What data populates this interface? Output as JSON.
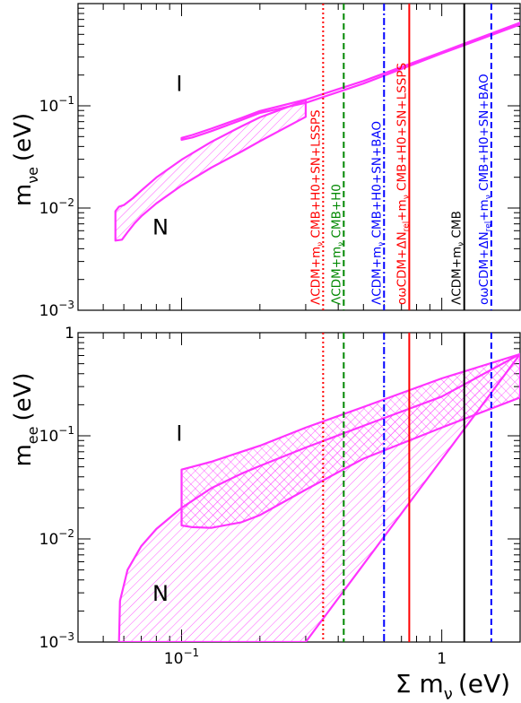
{
  "chart_data": [
    {
      "type": "line",
      "panel": "top",
      "ylabel": "m_νe (eV)",
      "ylabel_main": "m",
      "ylabel_sub": "νe",
      "ylabel_unit": "(eV)",
      "xscale": "log",
      "yscale": "log",
      "xlim": [
        0.04,
        2.0
      ],
      "ylim": [
        0.001,
        1.0
      ],
      "yticks": [
        {
          "value": 0.001,
          "label": "10",
          "exp": "−3"
        },
        {
          "value": 0.01,
          "label": "10",
          "exp": "−2"
        },
        {
          "value": 0.1,
          "label": "10",
          "exp": "−1"
        }
      ],
      "region_labels": [
        {
          "text": "I",
          "x": 0.098,
          "y": 0.14
        },
        {
          "text": "N",
          "x": 0.083,
          "y": 0.0055
        }
      ],
      "series": [
        {
          "name": "N",
          "hatch": "single",
          "color": "#ff33ff",
          "upper": [
            [
              0.0557,
              0.0093
            ],
            [
              0.0575,
              0.0103
            ],
            [
              0.06,
              0.0107
            ],
            [
              0.065,
              0.0125
            ],
            [
              0.07,
              0.0148
            ],
            [
              0.08,
              0.0199
            ],
            [
              0.1,
              0.0297
            ],
            [
              0.13,
              0.0443
            ],
            [
              0.17,
              0.063
            ],
            [
              0.2,
              0.077
            ],
            [
              0.3,
              0.113
            ]
          ],
          "lower": [
            [
              0.0557,
              0.0048
            ],
            [
              0.059,
              0.0049
            ],
            [
              0.062,
              0.0058
            ],
            [
              0.066,
              0.0071
            ],
            [
              0.07,
              0.0083
            ],
            [
              0.08,
              0.0111
            ],
            [
              0.1,
              0.0166
            ],
            [
              0.13,
              0.0248
            ],
            [
              0.17,
              0.0357
            ],
            [
              0.2,
              0.045
            ],
            [
              0.3,
              0.078
            ]
          ]
        },
        {
          "name": "I",
          "hatch": "none",
          "color": "#ff33ff",
          "upper": [
            [
              0.1,
              0.0485
            ],
            [
              0.11,
              0.0519
            ],
            [
              0.13,
              0.0597
            ],
            [
              0.17,
              0.0761
            ],
            [
              0.2,
              0.089
            ],
            [
              0.3,
              0.115
            ],
            [
              0.5,
              0.175
            ],
            [
              1.0,
              0.335
            ],
            [
              2.0,
              0.65
            ]
          ],
          "lower": [
            [
              0.1,
              0.0465
            ],
            [
              0.11,
              0.049
            ],
            [
              0.13,
              0.0565
            ],
            [
              0.17,
              0.0725
            ],
            [
              0.2,
              0.085
            ],
            [
              0.3,
              0.107
            ],
            [
              0.5,
              0.165
            ],
            [
              1.0,
              0.325
            ],
            [
              2.0,
              0.625
            ]
          ]
        }
      ]
    },
    {
      "type": "line",
      "panel": "bottom",
      "ylabel": "m_ee (eV)",
      "ylabel_main": "m",
      "ylabel_sub": "ee",
      "ylabel_unit": "(eV)",
      "xlabel": "Σ m_ν (eV)",
      "xlabel_main": "Σ m",
      "xlabel_sub": "ν",
      "xlabel_unit": "(eV)",
      "xscale": "log",
      "yscale": "log",
      "xlim": [
        0.04,
        2.0
      ],
      "ylim": [
        0.001,
        1.0
      ],
      "xticks": [
        {
          "value": 0.1,
          "label": "10",
          "exp": "−1"
        },
        {
          "value": 1.0,
          "label": "1",
          "exp": ""
        }
      ],
      "yticks": [
        {
          "value": 0.001,
          "label": "10",
          "exp": "−3"
        },
        {
          "value": 0.01,
          "label": "10",
          "exp": "−2"
        },
        {
          "value": 0.1,
          "label": "10",
          "exp": "−1"
        },
        {
          "value": 1.0,
          "label": "1",
          "exp": ""
        }
      ],
      "region_labels": [
        {
          "text": "I",
          "x": 0.098,
          "y": 0.09
        },
        {
          "text": "N",
          "x": 0.083,
          "y": 0.0025
        }
      ],
      "series": [
        {
          "name": "N",
          "hatch": "single",
          "color": "#ff33ff",
          "upper": [
            [
              0.0575,
              0.001
            ],
            [
              0.058,
              0.0025
            ],
            [
              0.062,
              0.005
            ],
            [
              0.07,
              0.0085
            ],
            [
              0.08,
              0.0125
            ],
            [
              0.1,
              0.02
            ],
            [
              0.13,
              0.031
            ],
            [
              0.17,
              0.043
            ],
            [
              0.2,
              0.051
            ],
            [
              0.3,
              0.077
            ],
            [
              0.5,
              0.125
            ],
            [
              1.0,
              0.24
            ],
            [
              2.0,
              0.62
            ]
          ],
          "lower": [
            [
              0.068,
              0.001
            ],
            [
              0.1,
              0.001
            ],
            [
              0.2,
              0.001
            ],
            [
              0.3,
              0.001
            ]
          ]
        },
        {
          "name": "I",
          "hatch": "cross",
          "color": "#ff33ff",
          "upper": [
            [
              0.1,
              0.047
            ],
            [
              0.11,
              0.05
            ],
            [
              0.13,
              0.056
            ],
            [
              0.17,
              0.07
            ],
            [
              0.2,
              0.08
            ],
            [
              0.3,
              0.12
            ],
            [
              0.5,
              0.19
            ],
            [
              1.0,
              0.36
            ],
            [
              2.0,
              0.62
            ]
          ],
          "lower": [
            [
              0.1,
              0.0135
            ],
            [
              0.11,
              0.013
            ],
            [
              0.13,
              0.0128
            ],
            [
              0.17,
              0.0145
            ],
            [
              0.2,
              0.017
            ],
            [
              0.3,
              0.03
            ],
            [
              0.5,
              0.06
            ],
            [
              1.0,
              0.12
            ],
            [
              2.0,
              0.235
            ]
          ]
        }
      ]
    }
  ],
  "bounds": [
    {
      "x": 0.35,
      "color": "#ff0000",
      "dash": "dotted",
      "label": "ΛCDM+m",
      "label_sub": "ν",
      "label_rest": " CMB+H0+SN+LSSPS"
    },
    {
      "x": 0.42,
      "color": "#008800",
      "dash": "dashed",
      "label": "ΛCDM+m",
      "label_sub": "ν",
      "label_rest": " CMB+H0"
    },
    {
      "x": 0.6,
      "color": "#0000ff",
      "dash": "dashdot",
      "label": "ΛCDM+m",
      "label_sub": "ν",
      "label_rest": " CMB+H0+SN+BAO"
    },
    {
      "x": 0.75,
      "color": "#ff0000",
      "dash": "solid",
      "label": "oωCDM+ΔN",
      "label_sub": "rel",
      "label_rest": "+m",
      "label_sub2": "ν",
      "label_rest2": " CMB+H0+SN+LSSPS"
    },
    {
      "x": 1.22,
      "color": "#000000",
      "dash": "solid",
      "label": "ΛCDM+m",
      "label_sub": "ν",
      "label_rest": " CMB"
    },
    {
      "x": 1.55,
      "color": "#0000ff",
      "dash": "dashed",
      "label": "oωCDM+ΔN",
      "label_sub": "rel",
      "label_rest": "+m",
      "label_sub2": "ν",
      "label_rest2": " CMB+H0+SN+BAO"
    }
  ]
}
